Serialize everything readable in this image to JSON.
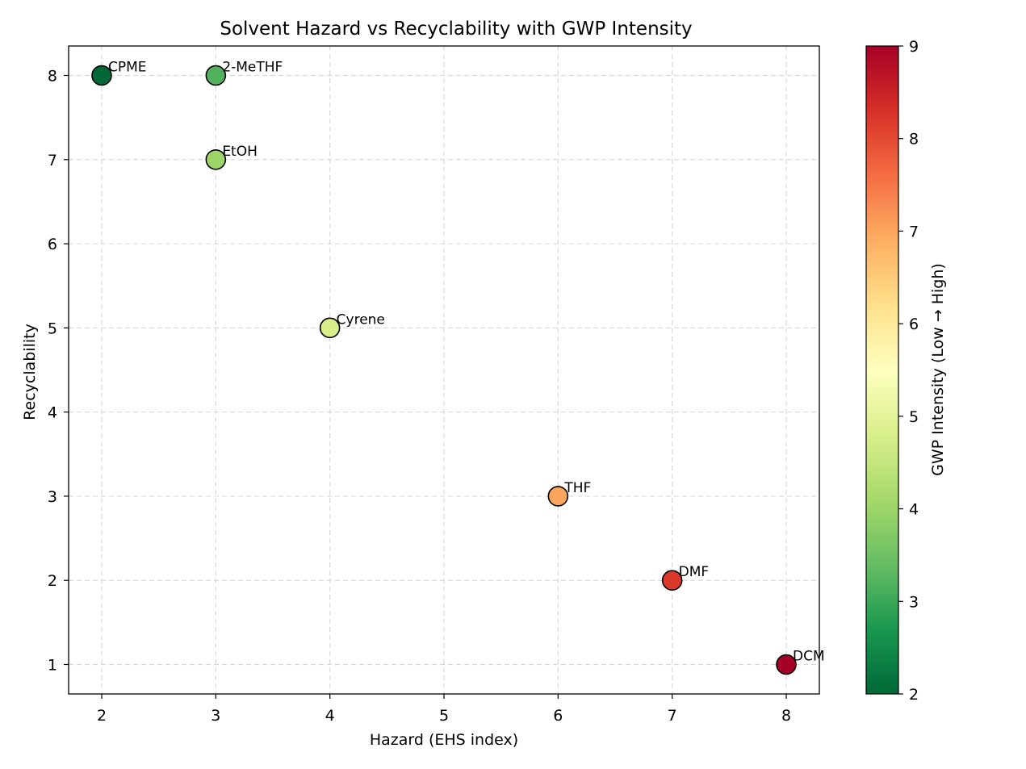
{
  "chart_data": {
    "type": "scatter",
    "title": "Solvent Hazard vs Recyclability with GWP Intensity",
    "xlabel": "Hazard (EHS index)",
    "ylabel": "Recyclability",
    "xlim": [
      1.71,
      8.29
    ],
    "ylim": [
      0.65,
      8.35
    ],
    "xticks": [
      2,
      3,
      4,
      5,
      6,
      7,
      8
    ],
    "yticks": [
      1,
      2,
      3,
      4,
      5,
      6,
      7,
      8
    ],
    "grid": true,
    "colormap": "RdYlGn_r",
    "colorbar": {
      "label": "GWP Intensity (Low → High)",
      "min": 2,
      "max": 9,
      "ticks": [
        2,
        3,
        4,
        5,
        6,
        7,
        8,
        9
      ]
    },
    "points": [
      {
        "label": "CPME",
        "x": 2,
        "y": 8,
        "gwp": 2.0
      },
      {
        "label": "2-MeTHF",
        "x": 3,
        "y": 8,
        "gwp": 3.2
      },
      {
        "label": "EtOH",
        "x": 3,
        "y": 7,
        "gwp": 4.0
      },
      {
        "label": "Cyrene",
        "x": 4,
        "y": 5,
        "gwp": 4.8
      },
      {
        "label": "THF",
        "x": 6,
        "y": 3,
        "gwp": 7.0
      },
      {
        "label": "DMF",
        "x": 7,
        "y": 2,
        "gwp": 8.2
      },
      {
        "label": "DCM",
        "x": 8,
        "y": 1,
        "gwp": 9.0
      }
    ]
  }
}
